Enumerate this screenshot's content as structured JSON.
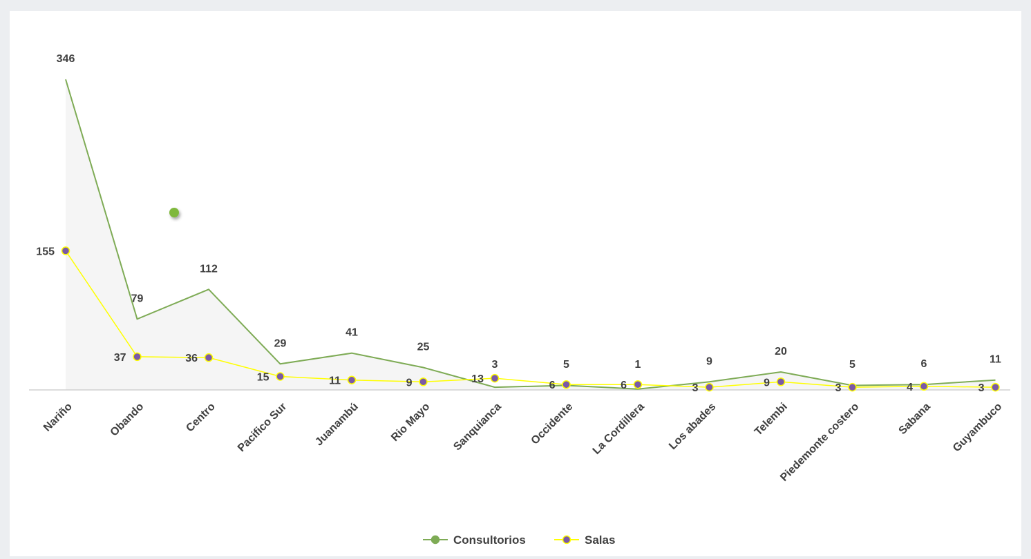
{
  "chart_data": {
    "type": "line",
    "categories": [
      "Nariño",
      "Obando",
      "Centro",
      "Pacifico Sur",
      "Juanambú",
      "Rio Mayo",
      "Sanquianca",
      "Occidente",
      "La Cordillera",
      "Los abades",
      "Telembi",
      "Piedemonte costero",
      "Sabana",
      "Guyambuco"
    ],
    "series": [
      {
        "name": "Consultorios",
        "values": [
          346,
          79,
          112,
          29,
          41,
          25,
          3,
          5,
          1,
          9,
          20,
          5,
          6,
          11
        ],
        "color": "#7eab55",
        "marker": "none"
      },
      {
        "name": "Salas",
        "values": [
          155,
          37,
          36,
          15,
          11,
          9,
          13,
          6,
          6,
          3,
          9,
          3,
          4,
          3
        ],
        "color": "#ffff00",
        "marker": "#7b5aa6"
      }
    ],
    "ylim": [
      0,
      370
    ],
    "grid": false,
    "legend": "bottom-center"
  }
}
